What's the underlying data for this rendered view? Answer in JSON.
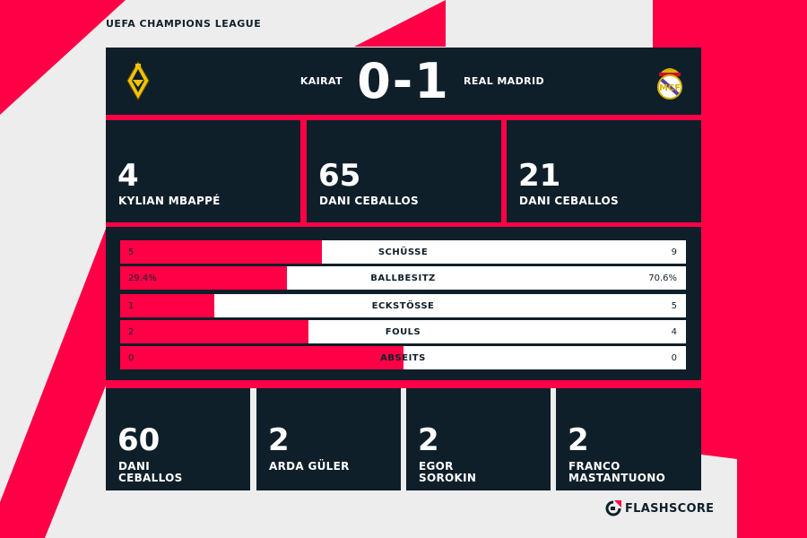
{
  "league": "UEFA CHAMPIONS LEAGUE",
  "match": {
    "home": "KAIRAT",
    "away": "REAL MADRID",
    "score": "0-1",
    "home_crest_icon": "kairat-crest-icon",
    "away_crest_icon": "real-madrid-crest-icon"
  },
  "top_cards": [
    {
      "value": "4",
      "player": "KYLIAN MBAPPÉ"
    },
    {
      "value": "65",
      "player": "DANI CEBALLOS"
    },
    {
      "value": "21",
      "player": "DANI CEBALLOS"
    }
  ],
  "stats": [
    {
      "label": "SCHÜSSE",
      "home": "5",
      "away": "9",
      "home_share": 0.357
    },
    {
      "label": "BALLBESITZ",
      "home": "29.4%",
      "away": "70.6%",
      "home_share": 0.294
    },
    {
      "label": "ECKSTÖSSE",
      "home": "1",
      "away": "5",
      "home_share": 0.167
    },
    {
      "label": "FOULS",
      "home": "2",
      "away": "4",
      "home_share": 0.333
    },
    {
      "label": "ABSEITS",
      "home": "0",
      "away": "0",
      "home_share": 0.5
    }
  ],
  "bottom_cards": [
    {
      "value": "60",
      "player_line1": "DANI",
      "player_line2": "CEBALLOS"
    },
    {
      "value": "2",
      "player_line1": "ARDA GÜLER",
      "player_line2": ""
    },
    {
      "value": "2",
      "player_line1": "EGOR",
      "player_line2": "SOROKIN"
    },
    {
      "value": "2",
      "player_line1": "FRANCO",
      "player_line2": "MASTANTUONO"
    }
  ],
  "brand": {
    "name": "FLASHSCORE",
    "icon": "flashscore-logo-icon"
  },
  "colors": {
    "accent": "#ff0046",
    "panel": "#0f1f2a",
    "background": "#ededed"
  }
}
